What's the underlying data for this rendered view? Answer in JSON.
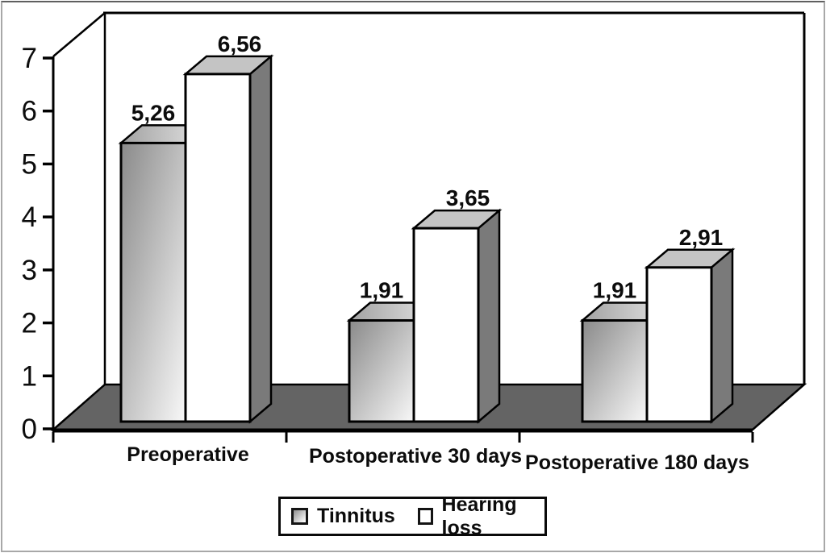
{
  "chart_data": {
    "type": "bar",
    "projection": "3d",
    "title": "",
    "xlabel": "",
    "ylabel": "",
    "categories": [
      "Preoperative",
      "Postoperative 30 days",
      "Postoperative 180 days"
    ],
    "series": [
      {
        "name": "Tinnitus",
        "style": "gray-gradient",
        "values": [
          5.26,
          1.91,
          1.91
        ],
        "labels": [
          "5,26",
          "1,91",
          "1,91"
        ]
      },
      {
        "name": "Hearing loss",
        "style": "white",
        "values": [
          6.56,
          3.65,
          2.91
        ],
        "labels": [
          "6,56",
          "3,65",
          "2,91"
        ]
      }
    ],
    "ylim": [
      0,
      7
    ],
    "yticks": [
      0,
      1,
      2,
      3,
      4,
      5,
      6,
      7
    ],
    "grid": false,
    "legend_position": "bottom"
  },
  "colors": {
    "outline": "#000000",
    "floor": "#646464",
    "wall": "#ffffff",
    "bar_white_front": "#ffffff",
    "bar_white_top": "#c4c4c4",
    "bar_side": "#7a7a7a",
    "gray_grad_start": "#8a8a8a",
    "gray_grad_end": "#f8f8f8",
    "gray_top_start": "#a2a2a2",
    "gray_top_end": "#e2e2e2",
    "text": "#0c0c0c",
    "frame_border": "#a8a8a8"
  }
}
